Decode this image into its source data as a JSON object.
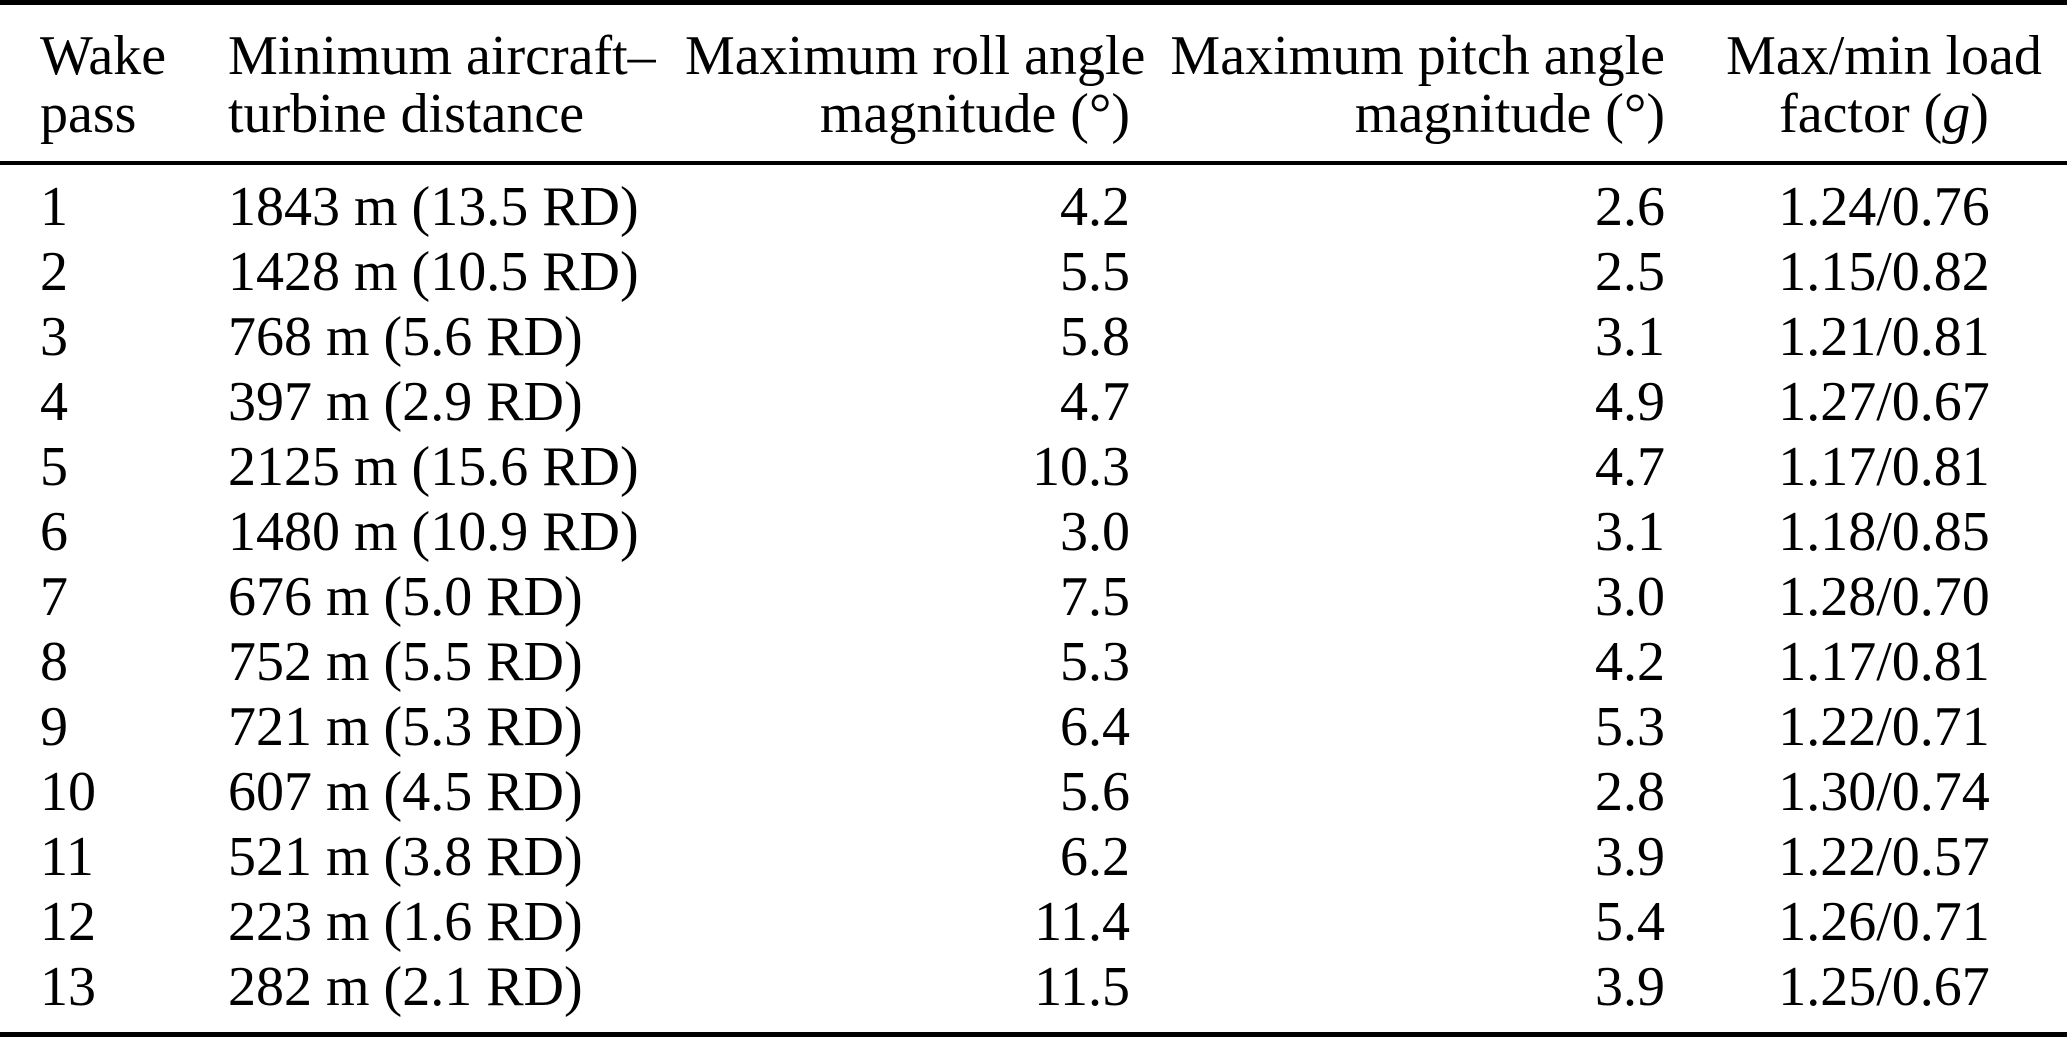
{
  "table": {
    "columns": [
      {
        "id": "wake_pass",
        "line1": "Wake",
        "line2": "pass",
        "align": "left"
      },
      {
        "id": "min_distance",
        "line1": "Minimum aircraft–",
        "line2": "turbine distance",
        "align": "left"
      },
      {
        "id": "max_roll",
        "line1": "Maximum roll angle",
        "line2": "magnitude (°)",
        "align": "right"
      },
      {
        "id": "max_pitch",
        "line1": "Maximum pitch angle",
        "line2": "magnitude (°)",
        "align": "right"
      },
      {
        "id": "load_factor",
        "line1": "Max/min load",
        "line2_prefix": "factor (",
        "line2_italic": "g",
        "line2_suffix": ")",
        "align": "center"
      }
    ],
    "rows": [
      {
        "pass": "1",
        "distance": "1843 m (13.5 RD)",
        "roll": "4.2",
        "pitch": "2.6",
        "load": "1.24/0.76"
      },
      {
        "pass": "2",
        "distance": "1428 m (10.5 RD)",
        "roll": "5.5",
        "pitch": "2.5",
        "load": "1.15/0.82"
      },
      {
        "pass": "3",
        "distance": "768 m (5.6 RD)",
        "roll": "5.8",
        "pitch": "3.1",
        "load": "1.21/0.81"
      },
      {
        "pass": "4",
        "distance": "397 m (2.9 RD)",
        "roll": "4.7",
        "pitch": "4.9",
        "load": "1.27/0.67"
      },
      {
        "pass": "5",
        "distance": "2125 m (15.6 RD)",
        "roll": "10.3",
        "pitch": "4.7",
        "load": "1.17/0.81"
      },
      {
        "pass": "6",
        "distance": "1480 m (10.9 RD)",
        "roll": "3.0",
        "pitch": "3.1",
        "load": "1.18/0.85"
      },
      {
        "pass": "7",
        "distance": "676 m (5.0 RD)",
        "roll": "7.5",
        "pitch": "3.0",
        "load": "1.28/0.70"
      },
      {
        "pass": "8",
        "distance": "752 m (5.5 RD)",
        "roll": "5.3",
        "pitch": "4.2",
        "load": "1.17/0.81"
      },
      {
        "pass": "9",
        "distance": "721 m (5.3 RD)",
        "roll": "6.4",
        "pitch": "5.3",
        "load": "1.22/0.71"
      },
      {
        "pass": "10",
        "distance": "607 m (4.5 RD)",
        "roll": "5.6",
        "pitch": "2.8",
        "load": "1.30/0.74"
      },
      {
        "pass": "11",
        "distance": "521 m (3.8 RD)",
        "roll": "6.2",
        "pitch": "3.9",
        "load": "1.22/0.57"
      },
      {
        "pass": "12",
        "distance": "223 m (1.6 RD)",
        "roll": "11.4",
        "pitch": "5.4",
        "load": "1.26/0.71"
      },
      {
        "pass": "13",
        "distance": "282 m (2.1 RD)",
        "roll": "11.5",
        "pitch": "3.9",
        "load": "1.25/0.67"
      }
    ]
  }
}
